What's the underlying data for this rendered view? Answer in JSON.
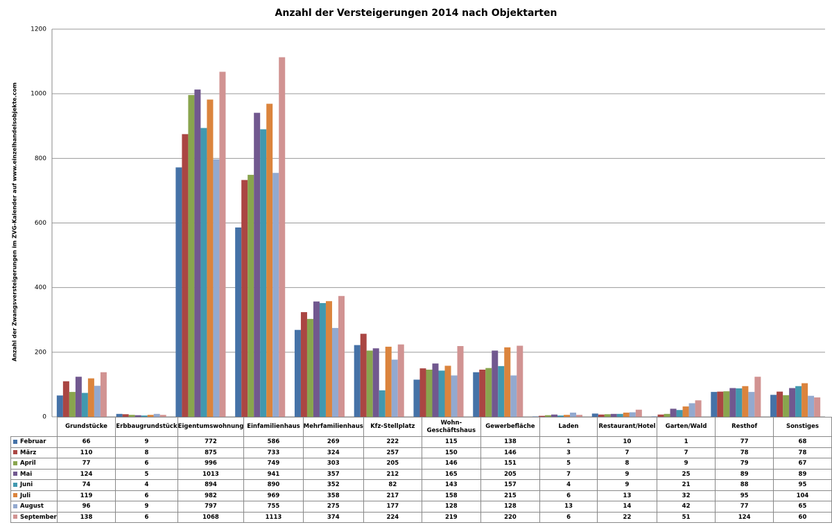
{
  "chart_data": {
    "type": "bar",
    "title": "Anzahl der Versteigerungen 2014 nach Objektarten",
    "y_label": "Anzahl der Zwangsversteigerungen im ZVG-Kalender auf www.einzelhandelsobjekte.com",
    "categories": [
      "Grundstücke",
      "Erbbaugrundstück",
      "Eigentumswohnung",
      "Einfamilienhaus",
      "Mehrfamilienhaus",
      "Kfz-Stellplatz",
      "Wohn-Geschäftshaus",
      "Gewerbefläche",
      "Laden",
      "Restaurant/Hotel",
      "Garten/Wald",
      "Resthof",
      "Sonstiges"
    ],
    "series": [
      {
        "name": "Februar",
        "color": "#4572a7",
        "values": [
          66,
          9,
          772,
          586,
          269,
          222,
          115,
          138,
          1,
          10,
          1,
          77,
          68
        ]
      },
      {
        "name": "März",
        "color": "#aa4643",
        "values": [
          110,
          8,
          875,
          733,
          324,
          257,
          150,
          146,
          3,
          7,
          7,
          78,
          78
        ]
      },
      {
        "name": "April",
        "color": "#89a54e",
        "values": [
          77,
          6,
          996,
          749,
          303,
          205,
          146,
          151,
          5,
          8,
          9,
          79,
          67
        ]
      },
      {
        "name": "Mai",
        "color": "#71588f",
        "values": [
          124,
          5,
          1013,
          941,
          357,
          212,
          165,
          205,
          7,
          9,
          25,
          89,
          89
        ]
      },
      {
        "name": "Juni",
        "color": "#4198af",
        "values": [
          74,
          4,
          894,
          890,
          352,
          82,
          143,
          157,
          4,
          9,
          21,
          88,
          95
        ]
      },
      {
        "name": "Juli",
        "color": "#db843d",
        "values": [
          119,
          6,
          982,
          969,
          358,
          217,
          158,
          215,
          6,
          13,
          32,
          95,
          104
        ]
      },
      {
        "name": "August",
        "color": "#93a9cf",
        "values": [
          96,
          9,
          797,
          755,
          275,
          177,
          128,
          128,
          13,
          14,
          42,
          77,
          65
        ]
      },
      {
        "name": "September",
        "color": "#d19392",
        "values": [
          138,
          6,
          1068,
          1113,
          374,
          224,
          219,
          220,
          6,
          22,
          51,
          124,
          60
        ]
      }
    ],
    "ylim": [
      0,
      1200
    ],
    "yticks": [
      0,
      200,
      400,
      600,
      800,
      1000,
      1200
    ],
    "grid": true
  }
}
